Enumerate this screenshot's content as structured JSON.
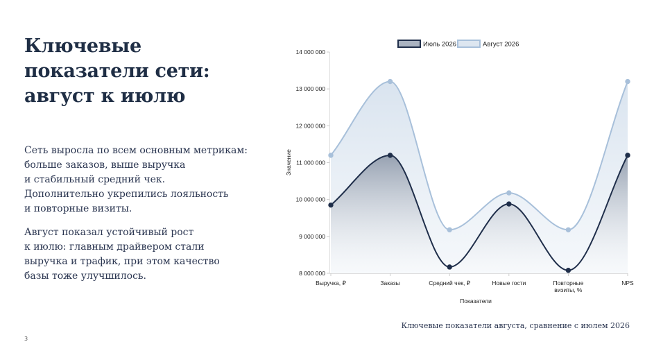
{
  "slide": {
    "title": "Ключевые показатели сети: август к июлю",
    "paragraph1": "Сеть выросла по всем основным метрикам:\nбольше заказов, выше выручка\nи стабильный средний чек.\nДополнительно укрепились лояльность\nи повторные визиты.",
    "paragraph2": "Август показал устойчивый рост\nк июлю: главным драйвером стали\nвыручка и трафик, при этом качество\nбазы тоже улучшилось.",
    "caption": "Ключевые показатели августа, сравнение с июлем 2026",
    "page_number": "3"
  },
  "chart_data": {
    "type": "area",
    "categories": [
      "Выручка, ₽",
      "Заказы",
      "Средний чек, ₽",
      "Новые гости",
      "Повторные визиты, %",
      "NPS"
    ],
    "category_lines": [
      [
        "Выручка, ₽"
      ],
      [
        "Заказы"
      ],
      [
        "Средний чек, ₽"
      ],
      [
        "Новые гости"
      ],
      [
        "Повторные",
        "визиты, %"
      ],
      [
        "NPS"
      ]
    ],
    "series": [
      {
        "name": "Июль 2026",
        "values": [
          9850000,
          11200000,
          8170000,
          9880000,
          8080000,
          11200000
        ],
        "color": "#1f2e4a"
      },
      {
        "name": "Август 2026",
        "values": [
          11200000,
          13200000,
          9180000,
          10180000,
          9180000,
          13200000
        ],
        "color": "#a8c0da"
      }
    ],
    "xlabel": "Показатели",
    "ylabel": "Значение",
    "ylim": [
      8000000,
      14000000
    ],
    "yticks": [
      8000000,
      9000000,
      10000000,
      11000000,
      12000000,
      13000000,
      14000000
    ],
    "ytick_labels": [
      "8 000 000",
      "9 000 000",
      "10 000 000",
      "11 000 000",
      "12 000 000",
      "13 000 000",
      "14 000 000"
    ],
    "legend": "top",
    "grid": false
  }
}
